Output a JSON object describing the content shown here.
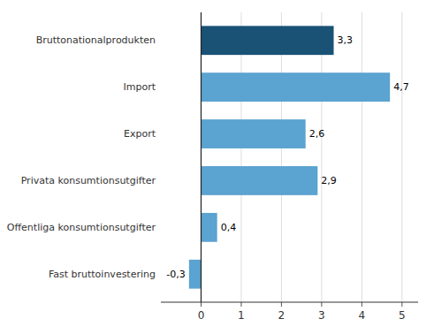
{
  "chart_data": {
    "type": "bar",
    "orientation": "horizontal",
    "categories": [
      "Fast bruttoinvestering",
      "Offentliga konsumtionsutgifter",
      "Privata konsumtionsutgifter",
      "Export",
      "Import",
      "Bruttonationalprodukten"
    ],
    "values": [
      -0.3,
      0.4,
      2.9,
      2.6,
      4.7,
      3.3
    ],
    "value_labels": [
      "-0,3",
      "0,4",
      "2,9",
      "2,6",
      "4,7",
      "3,3"
    ],
    "colors": [
      "#5ba3d0",
      "#5ba3d0",
      "#5ba3d0",
      "#5ba3d0",
      "#5ba3d0",
      "#1a5276"
    ],
    "xlim": [
      -1.0,
      5.4
    ],
    "xticks": [
      0,
      1,
      2,
      3,
      4,
      5
    ],
    "grid": true,
    "data_labels": true
  }
}
